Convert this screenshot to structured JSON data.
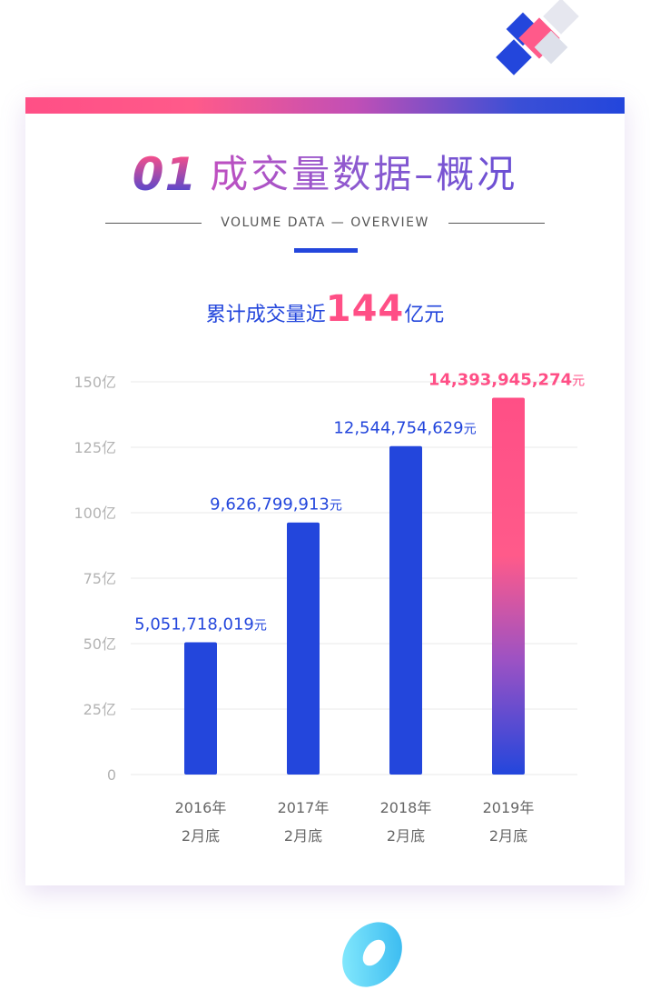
{
  "header": {
    "number": "01",
    "title": "成交量数据–概况",
    "subtitle": "VOLUME DATA — OVERVIEW"
  },
  "headline": {
    "prefix": "累计成交量近",
    "number": "144",
    "suffix": "亿元"
  },
  "colors": {
    "bar": "#2346dc",
    "accent": "#ff4f86",
    "tick": "#b3b3b3",
    "grid": "#e8e8e8"
  },
  "chart_data": {
    "type": "bar",
    "title": "",
    "xlabel": "",
    "ylabel": "",
    "ylim": [
      0,
      150
    ],
    "yticks": [
      0,
      25,
      50,
      75,
      100,
      125,
      150
    ],
    "ytick_labels": [
      "0",
      "25亿",
      "50亿",
      "75亿",
      "100亿",
      "125亿",
      "150亿"
    ],
    "grid": true,
    "categories": [
      {
        "line1": "2016年",
        "line2": "2月底"
      },
      {
        "line1": "2017年",
        "line2": "2月底"
      },
      {
        "line1": "2018年",
        "line2": "2月底"
      },
      {
        "line1": "2019年",
        "line2": "2月底"
      }
    ],
    "values": [
      50.51718019,
      96.26799913,
      125.44754629,
      143.93945274
    ],
    "data_labels": [
      {
        "number": "5,051,718,019",
        "unit": "元"
      },
      {
        "number": "9,626,799,913",
        "unit": "元"
      },
      {
        "number": "12,544,754,629",
        "unit": "元"
      },
      {
        "number": "14,393,945,274",
        "unit": "元"
      }
    ],
    "highlight_index": 3
  }
}
